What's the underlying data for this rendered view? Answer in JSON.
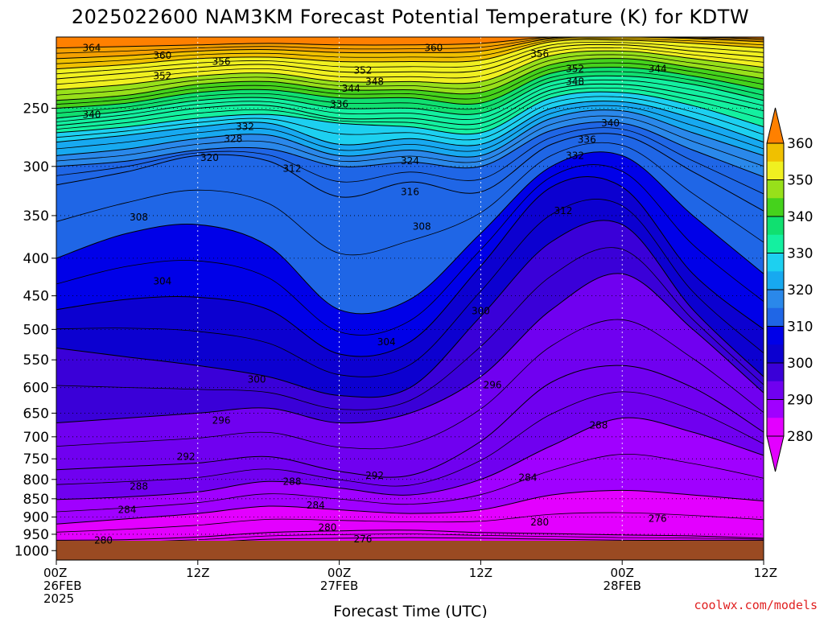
{
  "chart_data": {
    "type": "heatmap",
    "title": "2025022600 NAM3KM Forecast Potential Temperature (K) for KDTW",
    "xlabel": "Forecast Time (UTC)",
    "ylabel": "",
    "credit": "coolwx.com/models",
    "x_ticks": [
      {
        "hour": 0,
        "lines": [
          "00Z",
          "26FEB",
          "2025"
        ]
      },
      {
        "hour": 12,
        "lines": [
          "12Z"
        ]
      },
      {
        "hour": 24,
        "lines": [
          "00Z",
          "27FEB"
        ]
      },
      {
        "hour": 36,
        "lines": [
          "12Z"
        ]
      },
      {
        "hour": 48,
        "lines": [
          "00Z",
          "28FEB"
        ]
      },
      {
        "hour": 60,
        "lines": [
          "12Z"
        ]
      }
    ],
    "xlim_hours": [
      0,
      60
    ],
    "y_ticks": [
      250,
      300,
      350,
      400,
      450,
      500,
      550,
      600,
      650,
      700,
      750,
      800,
      850,
      900,
      950,
      1000
    ],
    "ylim_hpa": [
      200,
      1030
    ],
    "y_scale": "log",
    "grid": "dotted",
    "ground_level_hpa": 1000,
    "colorbar": {
      "ticks": [
        "360",
        "350",
        "340",
        "330",
        "320",
        "310",
        "300",
        "290",
        "280"
      ],
      "levels": [
        280,
        285,
        290,
        295,
        300,
        305,
        310,
        315,
        320,
        325,
        330,
        335,
        340,
        345,
        350,
        355,
        360,
        365
      ],
      "colors": [
        "#e300ff",
        "#a000ff",
        "#7000f0",
        "#3a00d8",
        "#0c00d0",
        "#0000e8",
        "#1f66e6",
        "#2a88ea",
        "#17a9f0",
        "#1dd0f0",
        "#14f0a0",
        "#10e070",
        "#45d21c",
        "#98e01a",
        "#f0f020",
        "#f0c000",
        "#f4a000",
        "#ff8000"
      ]
    },
    "series": [
      {
        "theta": 276,
        "p": [
          980,
          980,
          975,
          965,
          962,
          960,
          962,
          965,
          968,
          968,
          968
        ]
      },
      {
        "theta": 280,
        "p": [
          968,
          966,
          958,
          945,
          940,
          938,
          945,
          948,
          952,
          955,
          962
        ]
      },
      {
        "theta": 284,
        "p": [
          920,
          905,
          890,
          870,
          880,
          890,
          880,
          840,
          828,
          840,
          856
        ]
      },
      {
        "theta": 288,
        "p": [
          852,
          845,
          832,
          805,
          822,
          840,
          800,
          720,
          660,
          690,
          742
        ]
      },
      {
        "theta": 292,
        "p": [
          776,
          768,
          760,
          745,
          780,
          790,
          710,
          590,
          560,
          600,
          690
        ]
      },
      {
        "theta": 296,
        "p": [
          670,
          660,
          650,
          640,
          670,
          650,
          580,
          470,
          420,
          500,
          610
        ]
      },
      {
        "theta": 300,
        "p": [
          530,
          545,
          560,
          580,
          615,
          600,
          480,
          380,
          360,
          470,
          580
        ]
      },
      {
        "theta": 304,
        "p": [
          470,
          455,
          452,
          470,
          540,
          520,
          410,
          320,
          320,
          420,
          500
        ]
      },
      {
        "theta": 308,
        "p": [
          400,
          370,
          360,
          385,
          470,
          455,
          370,
          300,
          290,
          350,
          420
        ]
      },
      {
        "theta": 312,
        "p": [
          318,
          305,
          290,
          295,
          330,
          315,
          325,
          280,
          272,
          305,
          345
        ]
      },
      {
        "theta": 316,
        "p": [
          300,
          295,
          285,
          284,
          300,
          296,
          300,
          268,
          262,
          285,
          310
        ]
      },
      {
        "theta": 320,
        "p": [
          290,
          284,
          275,
          272,
          290,
          285,
          290,
          258,
          252,
          270,
          290
        ]
      },
      {
        "theta": 324,
        "p": [
          278,
          272,
          265,
          262,
          280,
          275,
          280,
          250,
          245,
          258,
          278
        ]
      },
      {
        "theta": 328,
        "p": [
          270,
          265,
          258,
          255,
          262,
          265,
          270,
          242,
          238,
          248,
          265
        ]
      },
      {
        "theta": 332,
        "p": [
          264,
          258,
          250,
          248,
          258,
          258,
          262,
          236,
          232,
          240,
          252
        ]
      },
      {
        "theta": 336,
        "p": [
          258,
          252,
          244,
          242,
          250,
          250,
          254,
          230,
          226,
          232,
          244
        ]
      },
      {
        "theta": 340,
        "p": [
          250,
          246,
          238,
          236,
          242,
          242,
          246,
          224,
          220,
          226,
          236
        ]
      },
      {
        "theta": 344,
        "p": [
          244,
          240,
          232,
          230,
          236,
          236,
          238,
          218,
          214,
          220,
          228
        ]
      },
      {
        "theta": 348,
        "p": [
          236,
          232,
          226,
          224,
          230,
          230,
          230,
          212,
          209,
          214,
          220
        ]
      },
      {
        "theta": 352,
        "p": [
          228,
          224,
          220,
          218,
          223,
          223,
          222,
          207,
          205,
          209,
          213
        ]
      },
      {
        "theta": 356,
        "p": [
          221,
          218,
          214,
          213,
          216,
          216,
          215,
          203,
          202,
          204,
          207
        ]
      },
      {
        "theta": 360,
        "p": [
          214,
          212,
          209,
          208,
          210,
          210,
          209,
          201,
          200,
          201,
          203
        ]
      },
      {
        "theta": 364,
        "p": [
          207,
          206,
          205,
          204,
          205,
          205,
          204,
          200,
          200,
          200,
          201
        ]
      }
    ],
    "series_hours": [
      0,
      6,
      12,
      18,
      24,
      30,
      36,
      42,
      48,
      54,
      60
    ],
    "contour_labels": [
      {
        "text": "364",
        "hour": 3,
        "hpa": 207
      },
      {
        "text": "360",
        "hour": 9,
        "hpa": 212
      },
      {
        "text": "352",
        "hour": 9,
        "hpa": 226
      },
      {
        "text": "356",
        "hour": 14,
        "hpa": 216
      },
      {
        "text": "352",
        "hour": 26,
        "hpa": 222
      },
      {
        "text": "360",
        "hour": 32,
        "hpa": 207
      },
      {
        "text": "348",
        "hour": 27,
        "hpa": 230
      },
      {
        "text": "344",
        "hour": 25,
        "hpa": 235
      },
      {
        "text": "336",
        "hour": 24,
        "hpa": 247
      },
      {
        "text": "356",
        "hour": 41,
        "hpa": 211
      },
      {
        "text": "352",
        "hour": 44,
        "hpa": 221
      },
      {
        "text": "348",
        "hour": 44,
        "hpa": 230
      },
      {
        "text": "344",
        "hour": 51,
        "hpa": 221
      },
      {
        "text": "340",
        "hour": 3,
        "hpa": 255
      },
      {
        "text": "332",
        "hour": 16,
        "hpa": 265
      },
      {
        "text": "328",
        "hour": 15,
        "hpa": 275
      },
      {
        "text": "340",
        "hour": 47,
        "hpa": 262
      },
      {
        "text": "336",
        "hour": 45,
        "hpa": 276
      },
      {
        "text": "332",
        "hour": 44,
        "hpa": 290
      },
      {
        "text": "320",
        "hour": 13,
        "hpa": 292
      },
      {
        "text": "312",
        "hour": 20,
        "hpa": 302
      },
      {
        "text": "324",
        "hour": 30,
        "hpa": 295
      },
      {
        "text": "316",
        "hour": 30,
        "hpa": 325
      },
      {
        "text": "312",
        "hour": 43,
        "hpa": 345
      },
      {
        "text": "308",
        "hour": 7,
        "hpa": 352
      },
      {
        "text": "308",
        "hour": 31,
        "hpa": 362
      },
      {
        "text": "304",
        "hour": 9,
        "hpa": 430
      },
      {
        "text": "300",
        "hour": 36,
        "hpa": 472
      },
      {
        "text": "304",
        "hour": 28,
        "hpa": 520
      },
      {
        "text": "300",
        "hour": 17,
        "hpa": 585
      },
      {
        "text": "296",
        "hour": 37,
        "hpa": 595
      },
      {
        "text": "296",
        "hour": 14,
        "hpa": 665
      },
      {
        "text": "288",
        "hour": 46,
        "hpa": 675
      },
      {
        "text": "292",
        "hour": 11,
        "hpa": 745
      },
      {
        "text": "292",
        "hour": 27,
        "hpa": 790
      },
      {
        "text": "284",
        "hour": 40,
        "hpa": 795
      },
      {
        "text": "288",
        "hour": 7,
        "hpa": 818
      },
      {
        "text": "288",
        "hour": 20,
        "hpa": 805
      },
      {
        "text": "284",
        "hour": 6,
        "hpa": 880
      },
      {
        "text": "284",
        "hour": 22,
        "hpa": 868
      },
      {
        "text": "280",
        "hour": 23,
        "hpa": 930
      },
      {
        "text": "280",
        "hour": 41,
        "hpa": 915
      },
      {
        "text": "276",
        "hour": 51,
        "hpa": 905
      },
      {
        "text": "276",
        "hour": 26,
        "hpa": 965
      },
      {
        "text": "280",
        "hour": 4,
        "hpa": 968
      }
    ]
  }
}
